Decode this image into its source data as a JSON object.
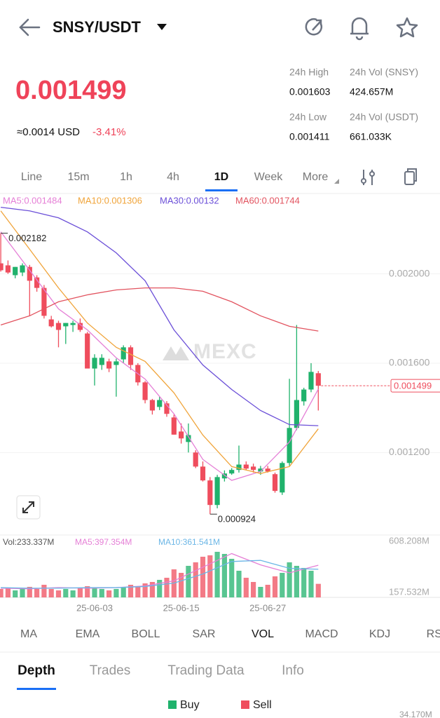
{
  "header": {
    "pair": "SNSY/USDT"
  },
  "price": {
    "last": "0.001499",
    "usd": "≈0.0014 USD",
    "change": "-3.41%"
  },
  "stats": [
    {
      "label": "24h High",
      "value": "0.001603"
    },
    {
      "label": "24h Vol (SNSY)",
      "value": "424.657M"
    },
    {
      "label": "24h Low",
      "value": "0.001411"
    },
    {
      "label": "24h Vol  (USDT)",
      "value": "661.033K"
    }
  ],
  "intervals": [
    "Line",
    "15m",
    "1h",
    "4h",
    "1D",
    "Week",
    "More"
  ],
  "active_interval": 4,
  "watermark": "MEXC",
  "chart_data": [
    {
      "type": "candlestick",
      "up_color": "#20b26c",
      "down_color": "#ef4d5d",
      "open": [
        0.002047,
        0.002038,
        0.001994,
        0.002006,
        0.002031,
        0.001984,
        0.001937,
        0.001796,
        0.00178,
        0.001765,
        0.001771,
        0.00178,
        0.001733,
        0.001576,
        0.001592,
        0.001608,
        0.001592,
        0.001617,
        0.001671,
        0.001592,
        0.001514,
        0.001435,
        0.001404,
        0.00142,
        0.001357,
        0.001294,
        0.001247,
        0.0012,
        0.001137,
        0.001075,
        0.000965,
        0.001084,
        0.001106,
        0.001122,
        0.001146,
        0.001137,
        0.001115,
        0.001128,
        0.001103,
        0.001021,
        0.001153,
        0.00131,
        0.001429,
        0.001482,
        0.001555
      ],
      "high": [
        0.002182,
        0.00206,
        0.002031,
        0.002047,
        0.00204,
        0.001994,
        0.00195,
        0.001812,
        0.00179,
        0.00178,
        0.00179,
        0.0018,
        0.00174,
        0.00164,
        0.00164,
        0.00162,
        0.00162,
        0.00168,
        0.00168,
        0.0016,
        0.00152,
        0.00144,
        0.00145,
        0.00143,
        0.00137,
        0.00133,
        0.00133,
        0.00121,
        0.00116,
        0.00109,
        0.0011,
        0.00112,
        0.00113,
        0.001231,
        0.00116,
        0.00115,
        0.00114,
        0.00114,
        0.00111,
        0.00116,
        0.00153,
        0.001771,
        0.00149,
        0.0016,
        0.001565
      ],
      "low": [
        0.00201,
        0.002,
        0.00198,
        0.00199,
        0.001812,
        0.00192,
        0.0018,
        0.00176,
        0.001671,
        0.001686,
        0.00174,
        0.00174,
        0.00158,
        0.0015,
        0.00157,
        0.00156,
        0.00145,
        0.0016,
        0.00157,
        0.0015,
        0.00142,
        0.00137,
        0.00139,
        0.00136,
        0.00128,
        0.00124,
        0.0012,
        0.00113,
        0.00107,
        0.000924,
        0.00095,
        0.00107,
        0.0011,
        0.00111,
        0.00112,
        0.00111,
        0.0011,
        0.00111,
        0.00102,
        0.00101,
        0.00114,
        0.0013,
        0.00141,
        0.00147,
        0.001388
      ],
      "close": [
        0.002016,
        0.002006,
        0.002031,
        0.002038,
        0.001969,
        0.001937,
        0.001812,
        0.001765,
        0.001749,
        0.00178,
        0.00178,
        0.001749,
        0.001576,
        0.001624,
        0.001624,
        0.001576,
        0.001608,
        0.001671,
        0.001592,
        0.001514,
        0.001435,
        0.001388,
        0.001435,
        0.001373,
        0.00128,
        0.001263,
        0.001278,
        0.001137,
        0.001075,
        0.000965,
        0.00109,
        0.001106,
        0.001122,
        0.001146,
        0.001128,
        0.001122,
        0.001128,
        0.001115,
        0.001028,
        0.001153,
        0.00131,
        0.001435,
        0.001482,
        0.001561,
        0.001499
      ],
      "ylim": [
        0.00084,
        0.0023
      ],
      "yticks": [
        {
          "value": 0.002,
          "label": "0.002000"
        },
        {
          "value": 0.0016,
          "label": "0.001600"
        },
        {
          "value": 0.0012,
          "label": "0.001200"
        }
      ],
      "series": [
        {
          "name": "MA5:0.001484",
          "color": "#e57fd6",
          "x": [
            0,
            4,
            8,
            12,
            16,
            20,
            24,
            28,
            32,
            36,
            40,
            44
          ],
          "values": [
            0.002188,
            0.002016,
            0.001843,
            0.001749,
            0.001624,
            0.001529,
            0.001373,
            0.001169,
            0.001075,
            0.001115,
            0.001247,
            0.001484
          ]
        },
        {
          "name": "MA10:0.001306",
          "color": "#f0a43a",
          "x": [
            0,
            4,
            8,
            12,
            16,
            20,
            24,
            28,
            32,
            36,
            40,
            44
          ],
          "values": [
            0.002282,
            0.00211,
            0.001937,
            0.00178,
            0.001671,
            0.001608,
            0.001467,
            0.001278,
            0.001137,
            0.001106,
            0.001137,
            0.001306
          ]
        },
        {
          "name": "MA30:0.00132",
          "color": "#6b4fd8",
          "x": [
            0,
            4,
            8,
            12,
            16,
            20,
            24,
            28,
            32,
            36,
            40,
            44
          ],
          "values": [
            0.002298,
            0.002282,
            0.002251,
            0.002188,
            0.002094,
            0.001969,
            0.001749,
            0.001592,
            0.001482,
            0.001388,
            0.001325,
            0.00132
          ]
        },
        {
          "name": "MA60:0.001744",
          "color": "#e2535f",
          "x": [
            0,
            4,
            8,
            12,
            16,
            20,
            24,
            28,
            32,
            36,
            40,
            44
          ],
          "values": [
            0.001771,
            0.001812,
            0.001875,
            0.001906,
            0.001928,
            0.001937,
            0.001937,
            0.001922,
            0.001875,
            0.001812,
            0.001765,
            0.001744
          ]
        }
      ],
      "max_mark": {
        "value": 0.002182,
        "at": 0
      },
      "min_mark": {
        "value": 0.000924,
        "at": 29
      },
      "last_price": 0.001499
    },
    {
      "type": "bar",
      "categories": [
        null,
        null,
        null,
        null,
        null,
        null,
        null,
        null,
        null,
        null,
        null,
        null,
        null,
        "25-06-03",
        null,
        null,
        null,
        null,
        null,
        null,
        null,
        null,
        null,
        null,
        null,
        "25-06-15",
        null,
        null,
        null,
        null,
        null,
        null,
        null,
        null,
        null,
        null,
        null,
        "25-06-27",
        null,
        null,
        null,
        null,
        null,
        null,
        null
      ],
      "series": [
        {
          "name": "Vol:233.337M",
          "values": [
            188.1,
            200.4,
            175.7,
            188.1,
            206.6,
            188.1,
            225.1,
            188.1,
            175.7,
            188.1,
            175.7,
            200.4,
            212.8,
            200.4,
            188.1,
            175.7,
            188.1,
            206.6,
            225.1,
            212.8,
            237.5,
            249.8,
            268.4,
            286.9,
            361,
            330.1,
            391.8,
            422.7,
            472.1,
            484.4,
            515.3,
            496.8,
            453.6,
            348.6,
            286.9,
            249.8,
            206.6,
            225.1,
            299.2,
            330.1,
            422.7,
            391.8,
            373.3,
            348.6,
            233.337
          ]
        },
        {
          "name": "MA5:397.354M",
          "color": "#e57fd6",
          "x": [
            0,
            4,
            8,
            12,
            16,
            20,
            24,
            28,
            32,
            36,
            40,
            44
          ],
          "values": [
            195,
            190,
            200,
            195,
            200,
            215,
            260,
            380,
            500,
            400,
            330,
            397.354
          ]
        },
        {
          "name": "MA10:361.541M",
          "color": "#6bb6e6",
          "x": [
            0,
            4,
            8,
            12,
            16,
            20,
            24,
            28,
            32,
            36,
            40,
            44
          ],
          "values": [
            200,
            195,
            195,
            200,
            200,
            210,
            240,
            320,
            430,
            440,
            370,
            361.541
          ]
        }
      ],
      "ylim": [
        114,
        651
      ],
      "yticks": [
        {
          "value": 608.208,
          "label": "608.208M"
        },
        {
          "value": 157.532,
          "label": "157.532M"
        }
      ]
    }
  ],
  "indicators": [
    "MA",
    "EMA",
    "BOLL",
    "SAR",
    "VOL",
    "MACD",
    "KDJ",
    "RSI"
  ],
  "active_indicator": 4,
  "tabs": [
    "Depth",
    "Trades",
    "Trading Data",
    "Info"
  ],
  "active_tab": 0,
  "depth": {
    "legend": [
      {
        "name": "Buy",
        "color": "#20b26c"
      },
      {
        "name": "Sell",
        "color": "#ef4d5d"
      }
    ],
    "axis_label": "34.170M"
  }
}
